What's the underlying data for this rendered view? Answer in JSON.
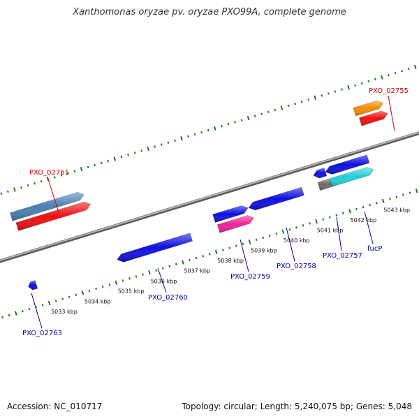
{
  "title": "Xanthomonas oryzae pv. oryzae PXO99A, complete genome",
  "footer": {
    "accession": "Accession: NC_010717",
    "info": "Topology: circular; Length: 5,240,075 bp; Genes: 5,048"
  },
  "colors": {
    "backbone": "#8a8a8a",
    "ticks": "#1f7a1f",
    "label_forward": "#cc0000",
    "label_reverse": "#0000aa",
    "blue": "#1010e0",
    "red": "#ee1010",
    "steel": "#4a80b4",
    "magenta": "#ee2299",
    "orange": "#f28c00",
    "cyan": "#20d0d8",
    "gray": "#6a6a6a"
  },
  "kbp_labels": [
    {
      "text": "5033 kbp",
      "t": 48
    },
    {
      "text": "5034 kbp",
      "t": 98
    },
    {
      "text": "5035 kbp",
      "t": 148
    },
    {
      "text": "5036 kbp",
      "t": 197
    },
    {
      "text": "5037 kbp",
      "t": 247
    },
    {
      "text": "5038 kbp",
      "t": 297
    },
    {
      "text": "5039 kbp",
      "t": 347
    },
    {
      "text": "5040 kbp",
      "t": 396
    },
    {
      "text": "5041 kbp",
      "t": 446
    },
    {
      "text": "5042 kbp",
      "t": 496
    },
    {
      "text": "5043 kbp",
      "t": 546
    }
  ],
  "genes": [
    {
      "name": "PXO_02761",
      "strand": "forward",
      "track": 2,
      "t0": 34,
      "t1": 143,
      "color": "steel",
      "dir": "right",
      "label_index": 0
    },
    {
      "name": "",
      "strand": "forward",
      "track": 1,
      "t0": 38,
      "t1": 148,
      "color": "red",
      "dir": "right"
    },
    {
      "name": "",
      "strand": "forward",
      "track": 1,
      "t0": -4,
      "t1": 8,
      "color": "red",
      "dir": "right"
    },
    {
      "name": "",
      "strand": "forward",
      "track": 2,
      "t0": -4,
      "t1": 6,
      "color": "blue",
      "dir": "right"
    },
    {
      "name": "PXO_02760",
      "strand": "reverse",
      "track": 2,
      "t0": 161,
      "t1": 272,
      "color": "blue",
      "dir": "left",
      "label_index": 1
    },
    {
      "name": "PXO_02763",
      "strand": "reverse",
      "track": 2,
      "t0": 28,
      "t1": 40,
      "color": "blue",
      "dir": "left",
      "label_index": 2
    },
    {
      "name": "",
      "strand": "reverse",
      "track": 1,
      "t0": 311,
      "t1": 362,
      "color": "blue",
      "dir": "right"
    },
    {
      "name": "PXO_02759",
      "strand": "reverse",
      "track": 2,
      "t0": 313,
      "t1": 366,
      "color": "magenta",
      "dir": "right",
      "label_index": 3
    },
    {
      "name": "PXO_02758",
      "strand": "reverse",
      "track": 1,
      "t0": 363,
      "t1": 444,
      "color": "blue",
      "dir": "left",
      "label_index": 4
    },
    {
      "name": "",
      "strand": "reverse",
      "track": 0,
      "t0": 465,
      "t1": 483,
      "color": "blue",
      "dir": "left"
    },
    {
      "name": "",
      "strand": "reverse",
      "track": 0,
      "t0": 483,
      "t1": 547,
      "color": "blue",
      "dir": "left"
    },
    {
      "name": "",
      "strand": "reverse",
      "track": 1,
      "t0": 468,
      "t1": 487,
      "color": "gray",
      "dir": "none"
    },
    {
      "name": "PXO_02757",
      "strand": "reverse",
      "track": 1,
      "t0": 486,
      "t1": 550,
      "color": "cyan",
      "dir": "right",
      "label_index": 5
    },
    {
      "name": "fucP",
      "strand": "reverse",
      "track": 1,
      "t0": 520,
      "t1": 521,
      "color": "cyan",
      "dir": "none",
      "label_index": 6,
      "hidden_mark": true
    },
    {
      "name": "PXO_02755",
      "strand": "forward",
      "track": 2,
      "t0": 548,
      "t1": 591,
      "color": "orange",
      "dir": "right",
      "label_index": 7
    },
    {
      "name": "",
      "strand": "forward",
      "track": 1,
      "t0": 552,
      "t1": 593,
      "color": "red",
      "dir": "right"
    }
  ],
  "labels": [
    {
      "text": "PXO_02761",
      "strand": "forward"
    },
    {
      "text": "PXO_02760",
      "strand": "reverse"
    },
    {
      "text": "PXO_02763",
      "strand": "reverse"
    },
    {
      "text": "PXO_02759",
      "strand": "reverse"
    },
    {
      "text": "PXO_02758",
      "strand": "reverse"
    },
    {
      "text": "PXO_02757",
      "strand": "reverse"
    },
    {
      "text": "fucP",
      "strand": "reverse"
    },
    {
      "text": "PXO_02755",
      "strand": "forward"
    }
  ]
}
